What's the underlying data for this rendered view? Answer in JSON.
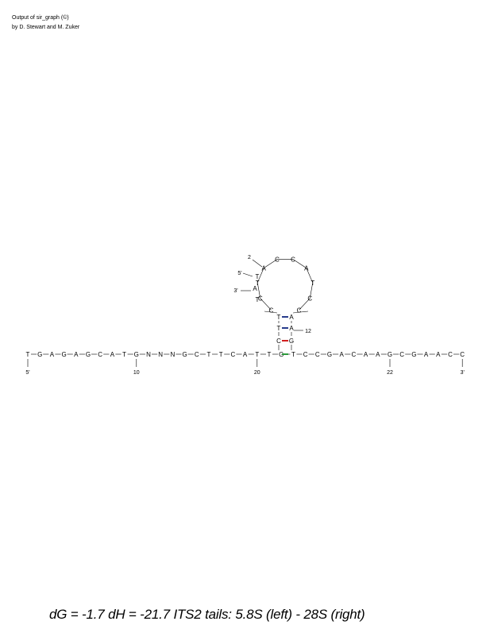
{
  "header": {
    "line1": "Output of sir_graph (©)",
    "line2": "by D. Stewart and M. Zuker"
  },
  "footer": {
    "text": "dG = -1.7 dH = -21.7 ITS2 tails: 5.8S (left) - 28S (right)"
  },
  "sequence": {
    "baseline_bases": [
      "T",
      "G",
      "A",
      "G",
      "A",
      "G",
      "C",
      "A",
      "T",
      "G",
      "N",
      "N",
      "N",
      "G",
      "C",
      "T",
      "T",
      "C",
      "A",
      "T",
      "T",
      "G",
      "T",
      "C",
      "C",
      "G",
      "A",
      "C",
      "A",
      "A",
      "G",
      "C",
      "G",
      "A",
      "A",
      "C",
      "C"
    ],
    "baseline_labels": [
      "5'",
      "10",
      "20",
      "22",
      "3'"
    ],
    "stem_left": [
      "C",
      "T",
      "T"
    ],
    "stem_right": [
      "G",
      "A",
      "A"
    ],
    "loop_bases": [
      "C",
      "C",
      "T",
      "A",
      "C",
      "C",
      "A",
      "T",
      "C",
      "C"
    ],
    "loop_labels": [
      "2",
      "5'",
      "3'",
      "12"
    ],
    "loop_left_strand": [
      "T",
      "A",
      "T"
    ],
    "pair_colors": [
      "#d21f1f",
      "#283c8c",
      "#283c8c"
    ],
    "pair_junction_color": "#2c9a3c"
  }
}
